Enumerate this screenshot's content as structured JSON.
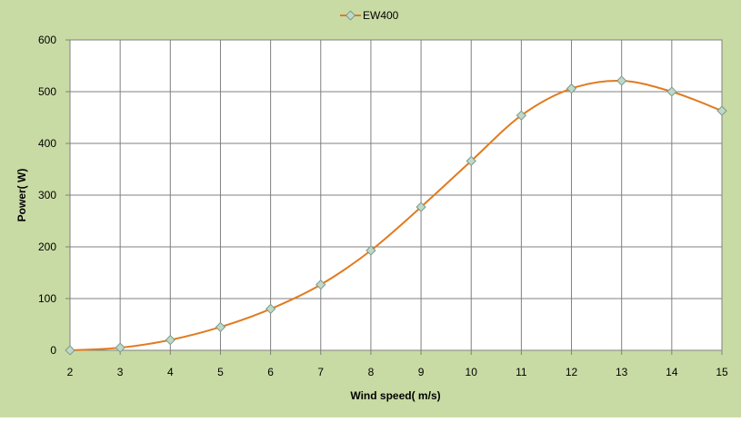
{
  "chart_data": {
    "type": "line",
    "title": "",
    "xlabel": "Wind speed( m/s)",
    "ylabel": "Power( W)",
    "x": [
      2,
      3,
      4,
      5,
      6,
      7,
      8,
      9,
      10,
      11,
      12,
      13,
      14,
      15
    ],
    "xlim": [
      2,
      15
    ],
    "ylim": [
      0,
      600
    ],
    "yticks": [
      0,
      100,
      200,
      300,
      400,
      500,
      600
    ],
    "series": [
      {
        "name": "EW400",
        "values": [
          0,
          5,
          20,
          45,
          80,
          127,
          193,
          277,
          366,
          454,
          506,
          521,
          500,
          463
        ]
      }
    ],
    "grid": true,
    "legend": "top-center",
    "colors": {
      "background": "#c9dba4",
      "plot_area": "#ffffff",
      "grid": "#808080",
      "line": "#e07b20",
      "marker_fill": "#c0d8c8",
      "marker_stroke": "#7a9a8a"
    }
  }
}
